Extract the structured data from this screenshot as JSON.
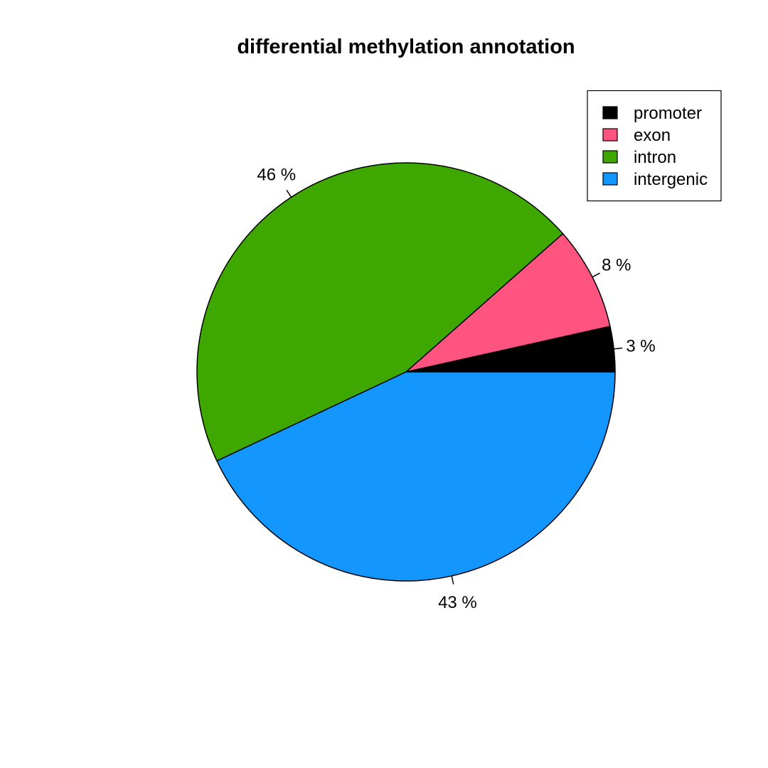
{
  "chart_data": {
    "type": "pie",
    "title": "differential methylation annotation",
    "direction": "counterclockwise",
    "start_angle_deg": 0,
    "slices": [
      {
        "name": "promoter",
        "value": 3.5,
        "label": "3 %",
        "color": "#000000"
      },
      {
        "name": "exon",
        "value": 8.0,
        "label": "8 %",
        "color": "#FF5480"
      },
      {
        "name": "intron",
        "value": 45.5,
        "label": "46 %",
        "color": "#3FA800"
      },
      {
        "name": "intergenic",
        "value": 43.0,
        "label": "43 %",
        "color": "#1496FF"
      }
    ],
    "legend": {
      "position": "top-right",
      "entries": [
        "promoter",
        "exon",
        "intron",
        "intergenic"
      ]
    }
  }
}
